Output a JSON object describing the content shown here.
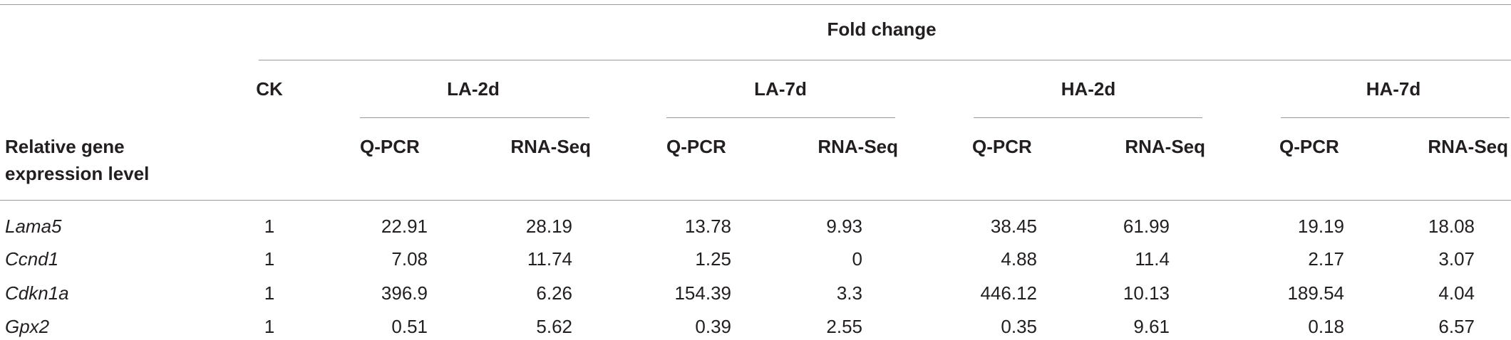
{
  "table": {
    "super_header": "Fold change",
    "row_header": "Relative gene expression level",
    "control": "CK",
    "groups": [
      {
        "name": "LA-2d",
        "columns": [
          "Q-PCR",
          "RNA-Seq"
        ]
      },
      {
        "name": "LA-7d",
        "columns": [
          "Q-PCR",
          "RNA-Seq"
        ]
      },
      {
        "name": "HA-2d",
        "columns": [
          "Q-PCR",
          "RNA-Seq"
        ]
      },
      {
        "name": "HA-7d",
        "columns": [
          "Q-PCR",
          "RNA-Seq"
        ]
      }
    ],
    "rows": [
      {
        "gene": "Lama5",
        "values": [
          1,
          22.91,
          28.19,
          13.78,
          9.93,
          38.45,
          61.99,
          19.19,
          18.08
        ]
      },
      {
        "gene": "Ccnd1",
        "values": [
          1,
          7.08,
          11.74,
          1.25,
          0,
          4.88,
          11.4,
          2.17,
          3.07
        ]
      },
      {
        "gene": "Cdkn1a",
        "values": [
          1,
          396.9,
          6.26,
          154.39,
          3.3,
          446.12,
          10.13,
          189.54,
          4.04
        ]
      },
      {
        "gene": "Gpx2",
        "values": [
          1,
          0.51,
          5.62,
          0.39,
          2.55,
          0.35,
          9.61,
          0.18,
          6.57
        ]
      }
    ]
  }
}
